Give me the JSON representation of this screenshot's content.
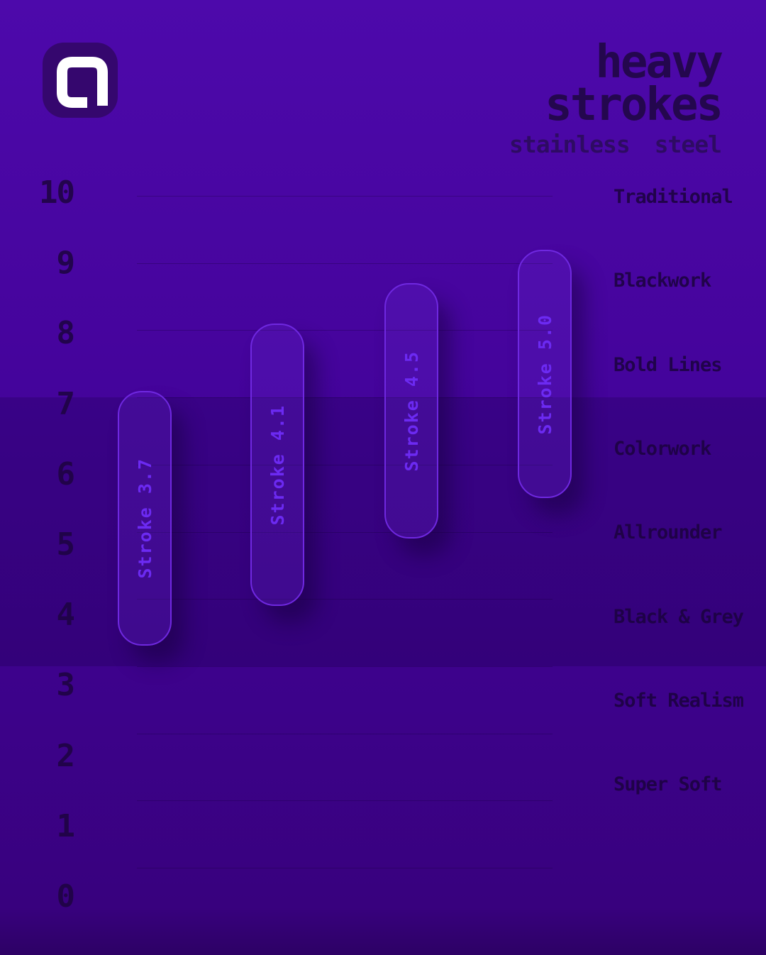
{
  "brand": {
    "logo_letter": "a"
  },
  "header": {
    "title_line1": "heavy",
    "title_line2": "strokes",
    "subtitle": "stainless steel"
  },
  "chart_data": {
    "type": "bar",
    "subtype": "vertical-range-bars",
    "title": "heavy strokes — stainless steel",
    "xlabel": "",
    "ylabel": "",
    "y_axis": {
      "min": 0,
      "max": 10,
      "tick_step": 1,
      "tick_labels": [
        "10",
        "9",
        "8",
        "7",
        "6",
        "5",
        "4",
        "3",
        "2",
        "1",
        "0"
      ]
    },
    "series": [
      {
        "name": "Stroke 3.7",
        "low": 3.3,
        "high": 7.1
      },
      {
        "name": "Stroke 4.1",
        "low": 3.9,
        "high": 8.1
      },
      {
        "name": "Stroke 4.5",
        "low": 4.9,
        "high": 8.7
      },
      {
        "name": "Stroke 5.0",
        "low": 5.5,
        "high": 9.2
      }
    ],
    "highlight_band": {
      "from": 3,
      "to": 7
    },
    "right_categories": [
      "Traditional",
      "Blackwork",
      "Bold Lines",
      "Colorwork",
      "Allrounder",
      "Black & Grey",
      "Soft Realism",
      "Super Soft"
    ],
    "grid": true,
    "legend": "none"
  },
  "colors": {
    "background_top": "#4d09ab",
    "background_bottom": "#38017e",
    "band": "rgba(13,0,48,0.20)",
    "bar_border": "#6f28e0",
    "bar_fill": "rgba(126,60,240,0.16)",
    "bar_text": "#6c2af2",
    "title_text": "#24074e",
    "axis_text": "#1e0442",
    "logo_bg": "#35076e",
    "logo_glyph": "#ffffff"
  }
}
